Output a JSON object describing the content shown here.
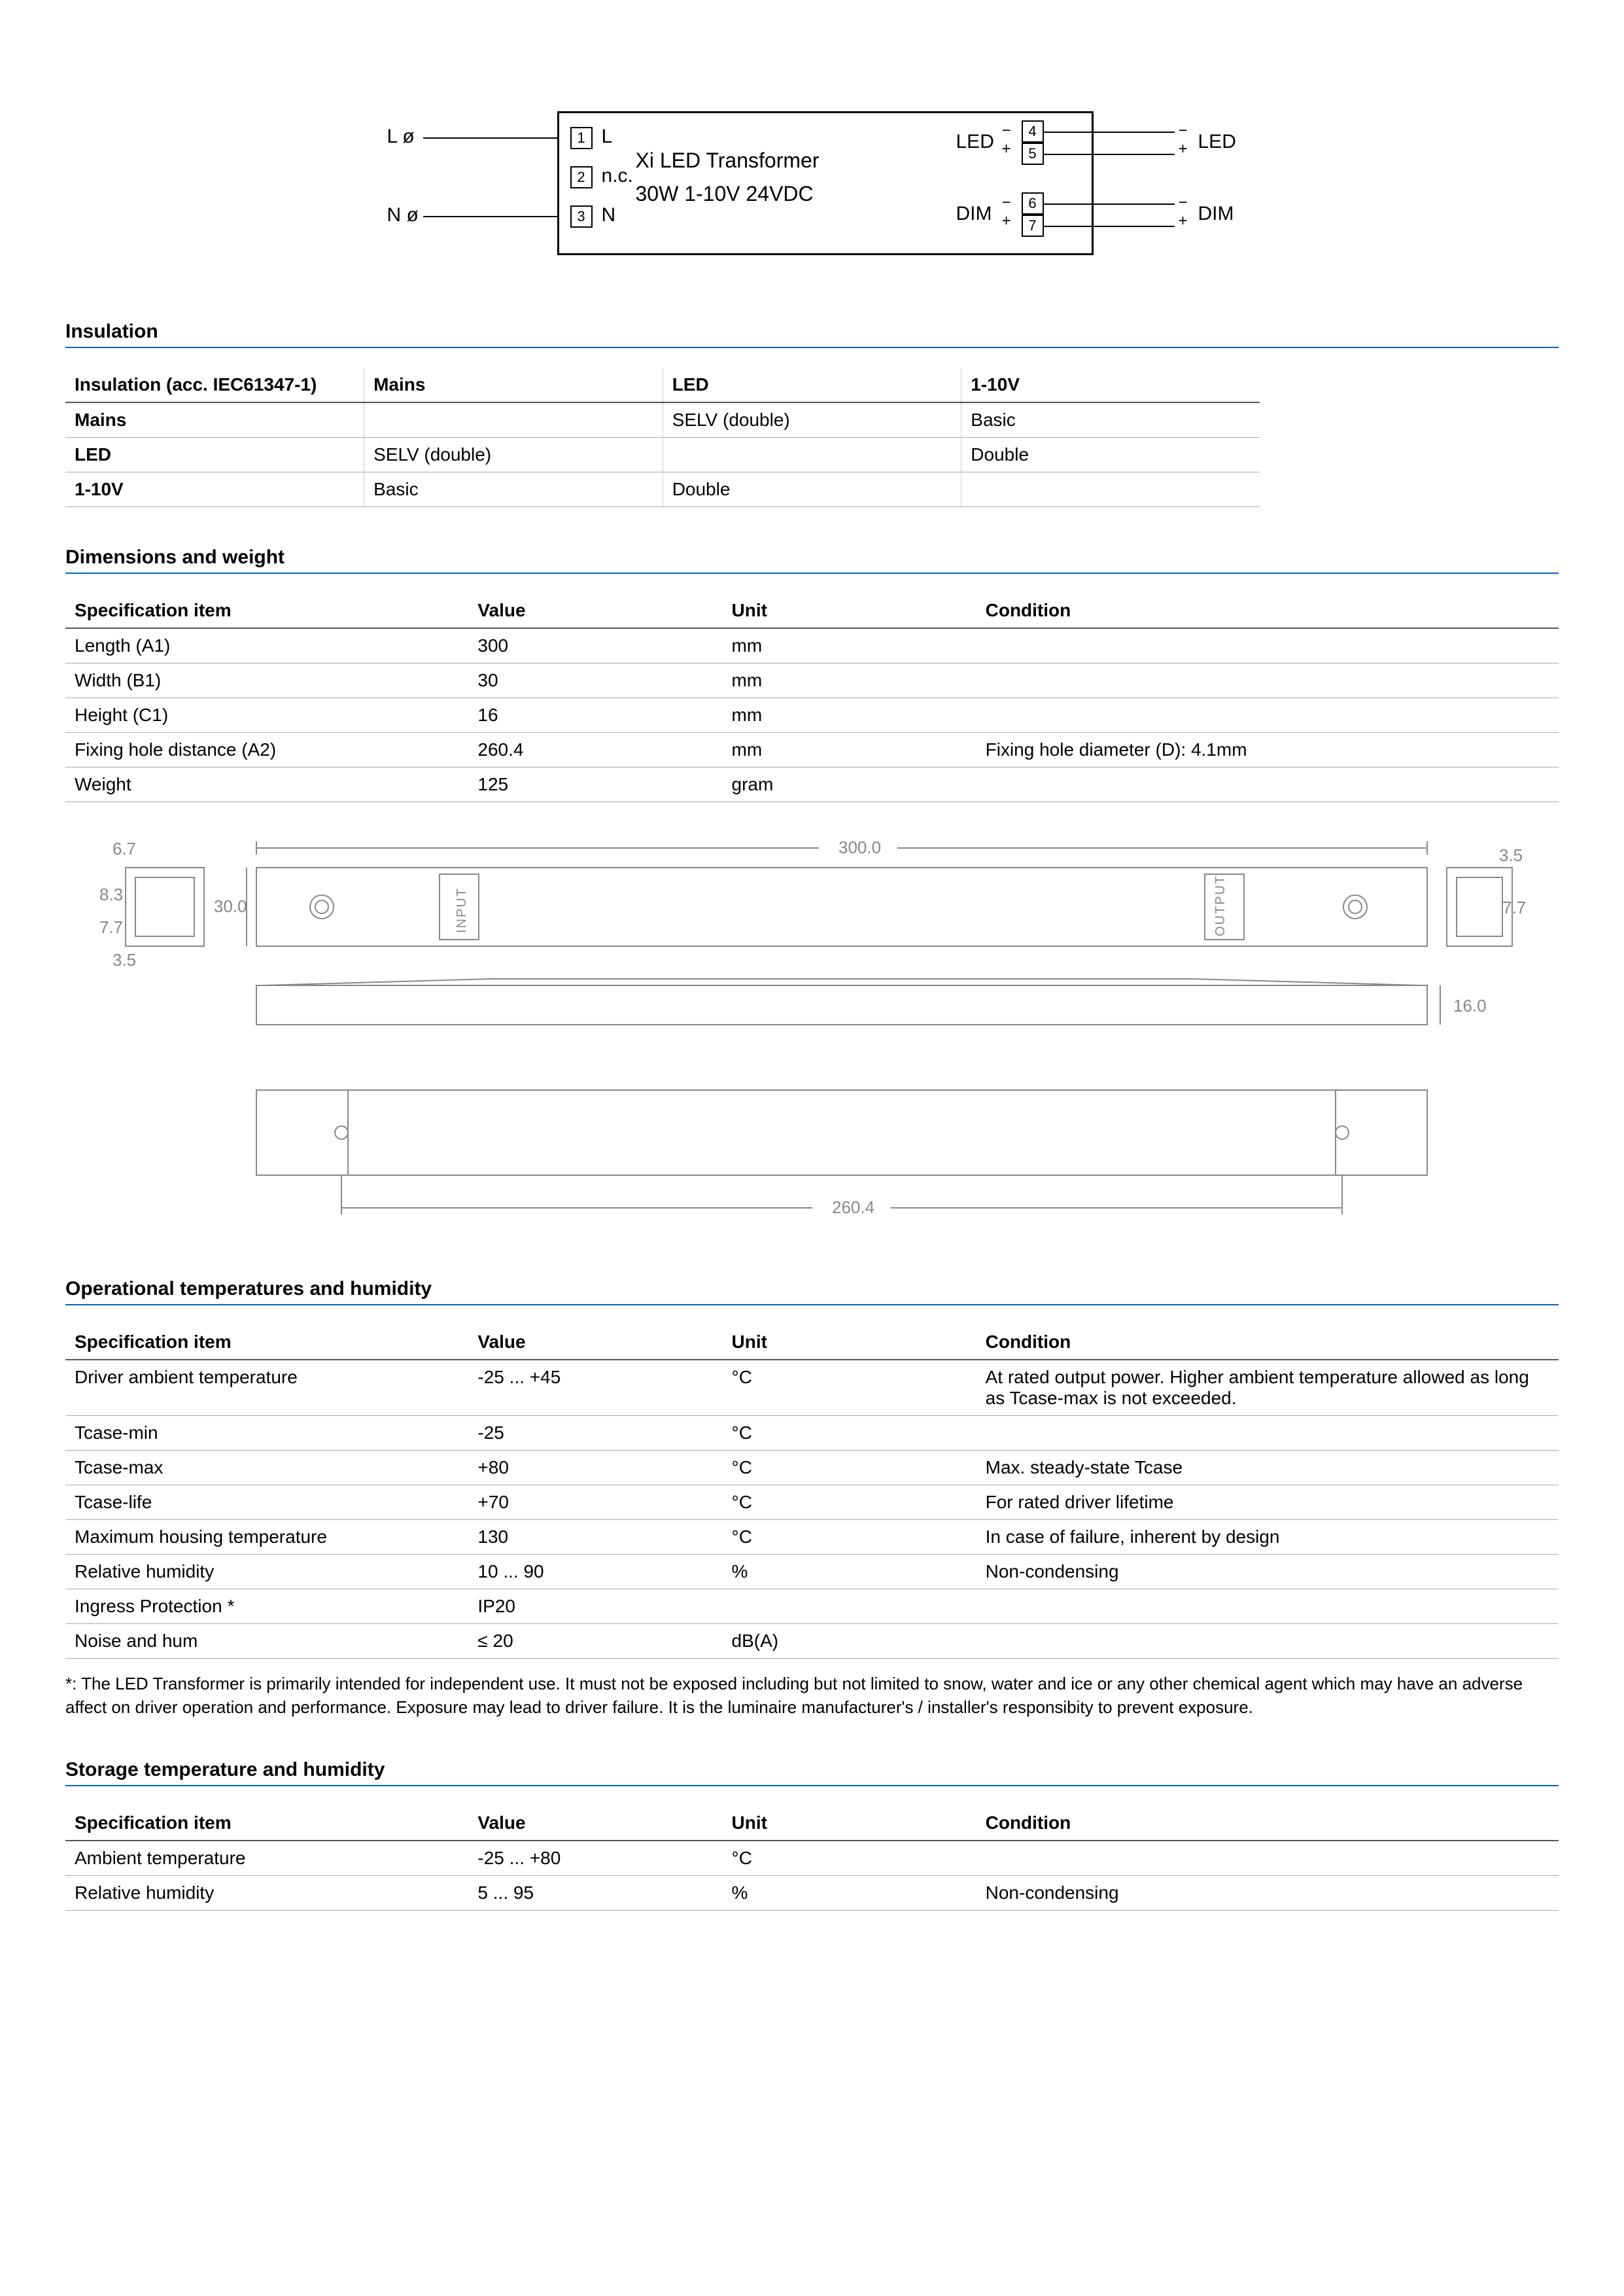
{
  "wiring": {
    "title1": "Xi  LED  Transformer",
    "title2": "30W 1-10V 24VDC",
    "left_L": "L ø",
    "left_N": "N ø",
    "t1": "1",
    "t1l": "L",
    "t2": "2",
    "t2l": "n.c.",
    "t3": "3",
    "t3l": "N",
    "t4": "4",
    "t5": "5",
    "t6": "6",
    "t7": "7",
    "led": "LED",
    "dim": "DIM",
    "minus": "−",
    "plus": "+"
  },
  "insulation": {
    "title": "Insulation",
    "header0": "Insulation (acc. IEC61347-1)",
    "headers": [
      "Mains",
      "LED",
      "1-10V"
    ],
    "rows": [
      {
        "h": "Mains",
        "c": [
          "",
          "SELV (double)",
          "Basic"
        ]
      },
      {
        "h": "LED",
        "c": [
          "SELV (double)",
          "",
          "Double"
        ]
      },
      {
        "h": "1-10V",
        "c": [
          "Basic",
          "Double",
          ""
        ]
      }
    ]
  },
  "dimensions": {
    "title": "Dimensions and weight",
    "headers": [
      "Specification item",
      "Value",
      "Unit",
      "Condition"
    ],
    "rows": [
      [
        "Length (A1)",
        "300",
        "mm",
        ""
      ],
      [
        "Width (B1)",
        "30",
        "mm",
        ""
      ],
      [
        "Height (C1)",
        "16",
        "mm",
        ""
      ],
      [
        "Fixing hole distance (A2)",
        "260.4",
        "mm",
        "Fixing hole diameter (D): 4.1mm"
      ],
      [
        "Weight",
        "125",
        "gram",
        ""
      ]
    ]
  },
  "mechanical": {
    "dim_300": "300.0",
    "dim_260": "260.4",
    "dim_30": "30.0",
    "dim_16": "16.0",
    "dim_67": "6.7",
    "dim_83": "8.3",
    "dim_77l": "7.7",
    "dim_35l": "3.5",
    "dim_35r": "3.5",
    "dim_77r": "7.7",
    "input": "INPUT",
    "output": "OUTPUT"
  },
  "operational": {
    "title": "Operational temperatures and humidity",
    "headers": [
      "Specification item",
      "Value",
      "Unit",
      "Condition"
    ],
    "rows": [
      [
        "Driver ambient temperature",
        "-25 ... +45",
        "°C",
        "At rated output power. Higher ambient temperature allowed as long as Tcase-max is not exceeded."
      ],
      [
        "Tcase-min",
        "-25",
        "°C",
        ""
      ],
      [
        "Tcase-max",
        "+80",
        "°C",
        "Max. steady-state Tcase"
      ],
      [
        "Tcase-life",
        "+70",
        "°C",
        "For rated driver lifetime"
      ],
      [
        "Maximum housing temperature",
        "130",
        "°C",
        "In case of failure, inherent by design"
      ],
      [
        "Relative humidity",
        "10 ... 90",
        "%",
        "Non-condensing"
      ],
      [
        "Ingress Protection *",
        "IP20",
        "",
        ""
      ],
      [
        "Noise and hum",
        "≤ 20",
        "dB(A)",
        ""
      ]
    ],
    "footnote": "*: The LED Transformer is primarily intended for independent use. It must not be exposed including but not limited to snow, water and ice or any other chemical agent which may have an adverse affect on driver operation and performance. Exposure may lead to driver failure. It is the luminaire manufacturer's / installer's responsibity to prevent exposure."
  },
  "storage": {
    "title": "Storage temperature and humidity",
    "headers": [
      "Specification item",
      "Value",
      "Unit",
      "Condition"
    ],
    "rows": [
      [
        "Ambient temperature",
        "-25 ... +80",
        "°C",
        ""
      ],
      [
        "Relative humidity",
        "5 ... 95",
        "%",
        "Non-condensing"
      ]
    ]
  },
  "colors": {
    "rule": "#0066cc",
    "border": "#aaaaaa",
    "mech": "#888888"
  }
}
